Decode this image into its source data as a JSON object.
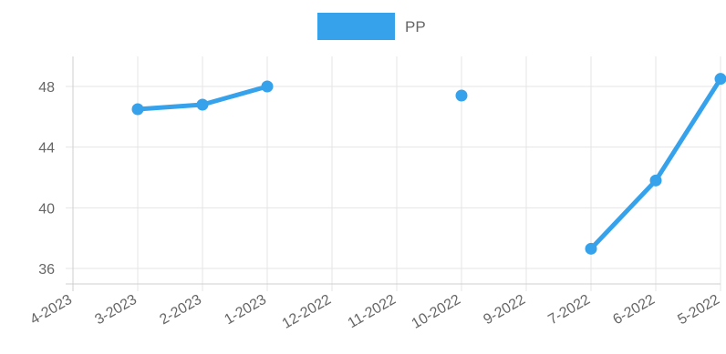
{
  "chart_data": {
    "type": "line",
    "categories": [
      "4-2023",
      "3-2023",
      "2-2023",
      "1-2023",
      "12-2022",
      "11-2022",
      "10-2022",
      "9-2022",
      "7-2022",
      "6-2022",
      "5-2022"
    ],
    "series": [
      {
        "name": "PP",
        "color": "#36a2eb",
        "values": [
          null,
          46.5,
          46.8,
          48.0,
          null,
          null,
          47.4,
          null,
          37.3,
          41.8,
          48.5
        ]
      }
    ],
    "ylim": [
      35,
      50
    ],
    "yticks": [
      36,
      40,
      44,
      48
    ],
    "legend_position": "top-center",
    "grid": true
  }
}
